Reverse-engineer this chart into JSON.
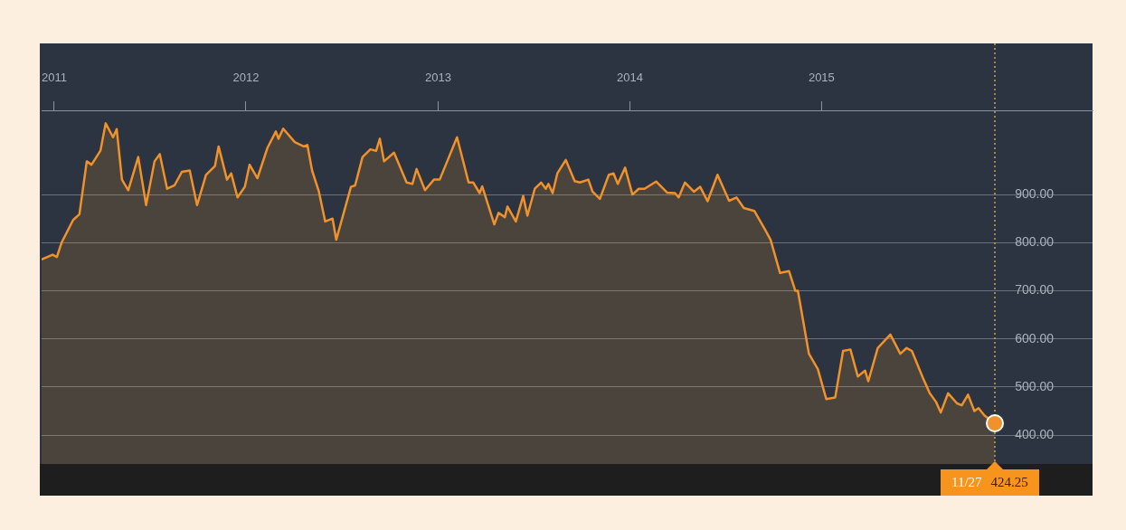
{
  "chart_data": {
    "type": "area",
    "color": "#f0922b",
    "x": [
      "2010-12-08",
      "2010-12-29",
      "2011-01-06",
      "2011-01-15",
      "2011-02-06",
      "2011-02-18",
      "2011-03-04",
      "2011-03-13",
      "2011-03-30",
      "2011-04-09",
      "2011-04-23",
      "2011-04-30",
      "2011-05-10",
      "2011-05-22",
      "2011-06-10",
      "2011-06-25",
      "2011-07-11",
      "2011-07-21",
      "2011-08-04",
      "2011-08-18",
      "2011-09-01",
      "2011-09-16",
      "2011-09-30",
      "2011-10-17",
      "2011-11-03",
      "2011-11-10",
      "2011-11-26",
      "2011-12-04",
      "2011-12-16",
      "2011-12-30",
      "2012-01-08",
      "2012-01-23",
      "2012-02-11",
      "2012-02-27",
      "2012-03-03",
      "2012-03-12",
      "2012-04-03",
      "2012-04-20",
      "2012-04-27",
      "2012-05-06",
      "2012-05-19",
      "2012-05-31",
      "2012-06-14",
      "2012-06-21",
      "2012-07-19",
      "2012-07-27",
      "2012-08-10",
      "2012-08-25",
      "2012-09-05",
      "2012-09-12",
      "2012-09-20",
      "2012-10-09",
      "2012-11-02",
      "2012-11-13",
      "2012-11-21",
      "2012-12-07",
      "2012-12-24",
      "2013-01-04",
      "2013-02-06",
      "2013-02-28",
      "2013-03-09",
      "2013-03-21",
      "2013-03-26",
      "2013-04-18",
      "2013-04-26",
      "2013-05-08",
      "2013-05-13",
      "2013-05-29",
      "2013-06-12",
      "2013-06-20",
      "2013-07-04",
      "2013-07-16",
      "2013-07-25",
      "2013-07-30",
      "2013-08-07",
      "2013-08-16",
      "2013-09-01",
      "2013-09-18",
      "2013-09-28",
      "2013-10-14",
      "2013-10-22",
      "2013-11-05",
      "2013-11-22",
      "2013-12-01",
      "2013-12-09",
      "2013-12-23",
      "2014-01-06",
      "2014-01-18",
      "2014-01-29",
      "2014-02-20",
      "2014-03-13",
      "2014-03-28",
      "2014-04-04",
      "2014-04-16",
      "2014-05-03",
      "2014-05-15",
      "2014-05-29",
      "2014-06-17",
      "2014-07-09",
      "2014-07-23",
      "2014-08-06",
      "2014-08-26",
      "2014-09-16",
      "2014-09-26",
      "2014-10-14",
      "2014-10-31",
      "2014-11-12",
      "2014-11-17",
      "2014-12-08",
      "2014-12-25",
      "2015-01-10",
      "2015-01-27",
      "2015-02-11",
      "2015-02-25",
      "2015-03-11",
      "2015-03-25",
      "2015-03-31",
      "2015-04-18",
      "2015-05-12",
      "2015-05-31",
      "2015-06-12",
      "2015-06-22",
      "2015-07-13",
      "2015-07-26",
      "2015-08-07",
      "2015-08-16",
      "2015-08-30",
      "2015-09-16",
      "2015-09-25",
      "2015-10-07",
      "2015-10-19",
      "2015-10-27",
      "2015-11-07",
      "2015-11-27"
    ],
    "values": [
      765,
      775,
      770,
      800,
      847,
      859,
      969,
      962,
      991,
      1048,
      1019,
      1036,
      931,
      909,
      978,
      878,
      969,
      984,
      912,
      919,
      947,
      950,
      878,
      941,
      959,
      1000,
      931,
      944,
      894,
      916,
      962,
      934,
      997,
      1031,
      1016,
      1037,
      1009,
      1000,
      1003,
      950,
      906,
      844,
      850,
      806,
      916,
      919,
      978,
      994,
      991,
      1016,
      969,
      987,
      925,
      922,
      953,
      909,
      931,
      931,
      1019,
      925,
      925,
      903,
      917,
      838,
      862,
      853,
      875,
      844,
      897,
      856,
      912,
      925,
      912,
      922,
      903,
      944,
      972,
      928,
      925,
      931,
      906,
      891,
      941,
      944,
      922,
      956,
      900,
      912,
      912,
      927,
      904,
      903,
      894,
      925,
      906,
      916,
      886,
      941,
      887,
      894,
      872,
      866,
      826,
      806,
      737,
      741,
      700,
      700,
      569,
      537,
      475,
      478,
      575,
      578,
      522,
      534,
      512,
      581,
      609,
      569,
      581,
      575,
      519,
      487,
      469,
      447,
      487,
      466,
      462,
      484,
      450,
      456,
      441,
      424.25
    ],
    "xlim": [
      "2010-12-08",
      "2016-05-31"
    ],
    "xticks": [
      {
        "value": "2011-01-01",
        "label": "2011"
      },
      {
        "value": "2012-01-01",
        "label": "2012"
      },
      {
        "value": "2013-01-01",
        "label": "2013"
      },
      {
        "value": "2014-01-01",
        "label": "2014"
      },
      {
        "value": "2015-01-01",
        "label": "2015"
      }
    ],
    "ylim": [
      340,
      1075
    ],
    "yticks": [
      {
        "value": 400,
        "label": "400.00"
      },
      {
        "value": 500,
        "label": "500.00"
      },
      {
        "value": 600,
        "label": "600.00"
      },
      {
        "value": 700,
        "label": "700.00"
      },
      {
        "value": 800,
        "label": "800.00"
      },
      {
        "value": 900,
        "label": "900.00"
      }
    ],
    "grid": "y",
    "ref_lines": [
      {
        "axis": "x",
        "value": "2015-11-27",
        "color": "#c9a24a",
        "line_style": "dotted"
      }
    ],
    "annotations": [
      "11/27",
      "424.25"
    ]
  }
}
